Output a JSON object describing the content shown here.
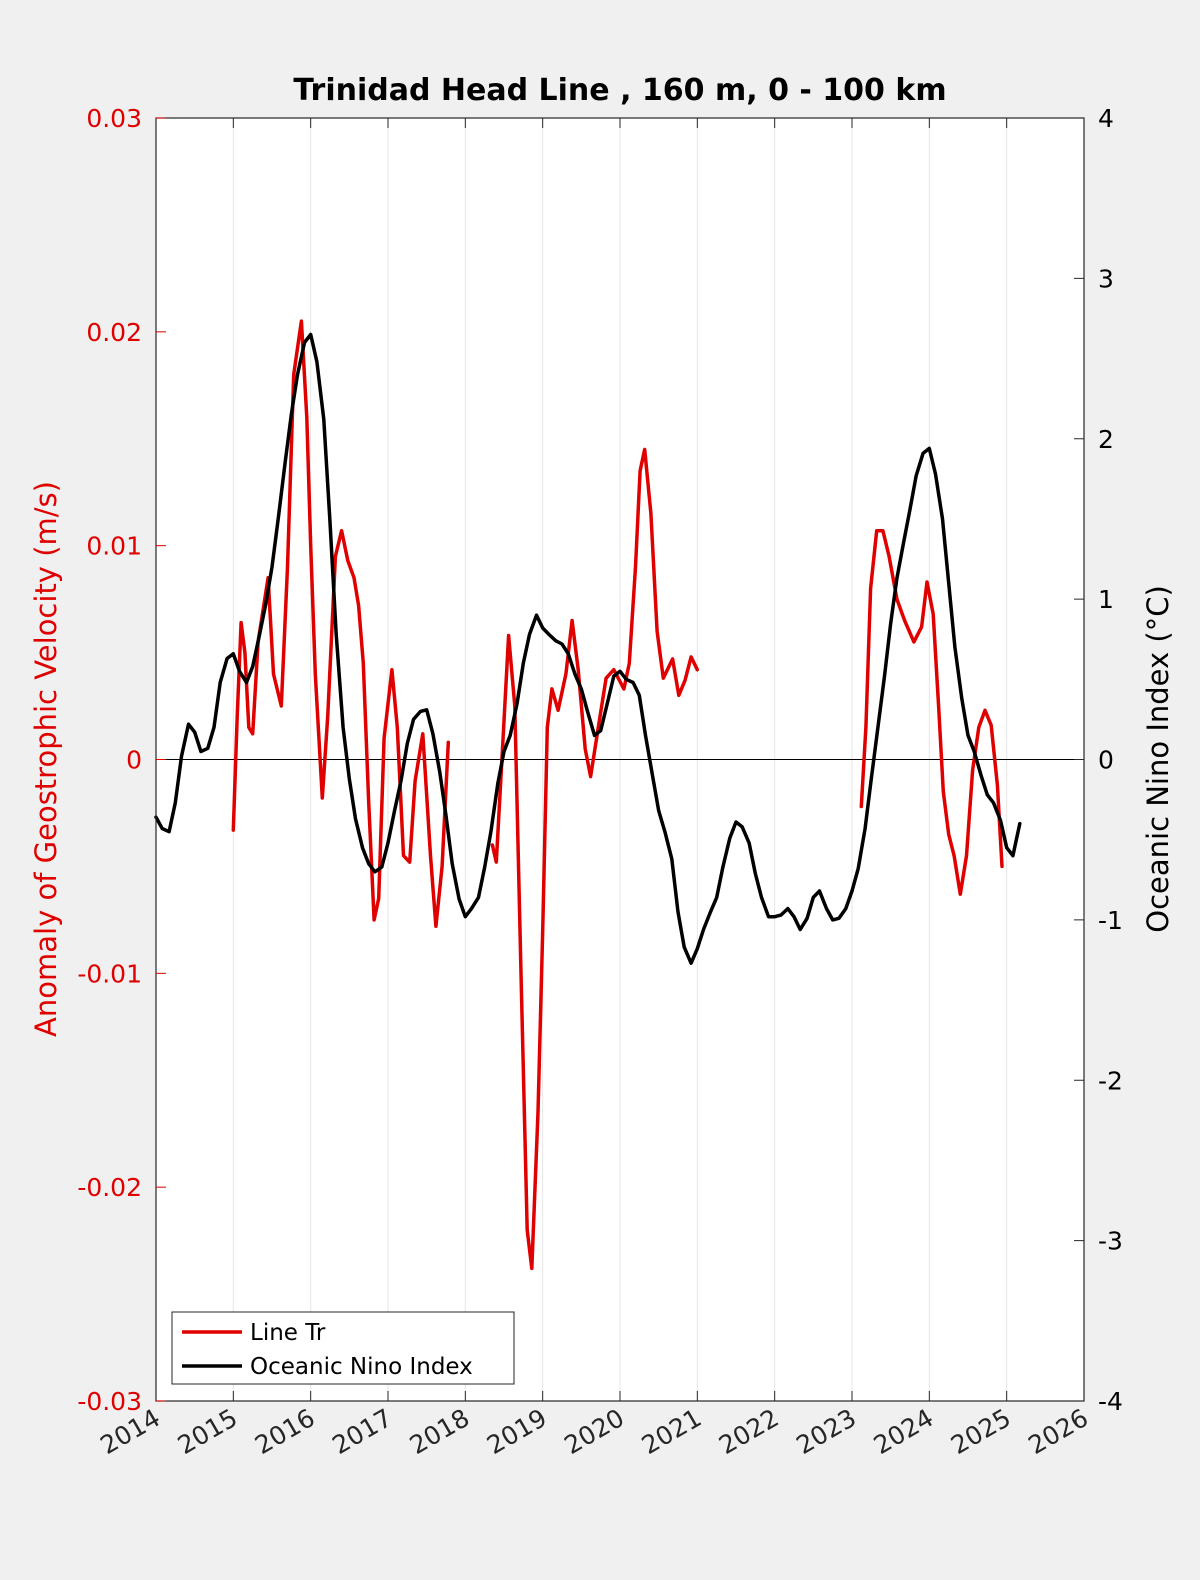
{
  "chart_data": {
    "type": "line",
    "title": "Trinidad Head Line , 160 m, 0 - 100 km",
    "ylabel_left": "Anomaly of Geostrophic Velocity (m/s)",
    "ylabel_right": "Oceanic Nino Index (°C)",
    "xlabel": "",
    "xlim": [
      2014,
      2026
    ],
    "ylim_left": [
      -0.03,
      0.03
    ],
    "ylim_right": [
      -4,
      4
    ],
    "x_ticks": [
      "2014",
      "2015",
      "2016",
      "2017",
      "2018",
      "2019",
      "2020",
      "2021",
      "2022",
      "2023",
      "2024",
      "2025",
      "2026"
    ],
    "y_ticks_left": [
      "-0.03",
      "-0.02",
      "-0.01",
      "0",
      "0.01",
      "0.02",
      "0.03"
    ],
    "y_ticks_right": [
      "-4",
      "-3",
      "-2",
      "-1",
      "0",
      "1",
      "2",
      "3",
      "4"
    ],
    "grid": "x-only",
    "legend_position": "bottom-left",
    "series": [
      {
        "name": "Line Tr",
        "color": "#e00000",
        "axis": "left",
        "segments": [
          [
            [
              2015.0,
              -0.0033
            ],
            [
              2015.05,
              0.002
            ],
            [
              2015.1,
              0.0064
            ],
            [
              2015.15,
              0.005
            ],
            [
              2015.2,
              0.0015
            ],
            [
              2015.25,
              0.0012
            ],
            [
              2015.32,
              0.0055
            ],
            [
              2015.45,
              0.0085
            ],
            [
              2015.52,
              0.004
            ],
            [
              2015.62,
              0.0025
            ],
            [
              2015.7,
              0.009
            ],
            [
              2015.78,
              0.018
            ],
            [
              2015.88,
              0.0205
            ],
            [
              2015.95,
              0.016
            ],
            [
              2016.0,
              0.01
            ],
            [
              2016.06,
              0.004
            ],
            [
              2016.15,
              -0.0018
            ],
            [
              2016.22,
              0.002
            ],
            [
              2016.32,
              0.0095
            ],
            [
              2016.4,
              0.0107
            ],
            [
              2016.48,
              0.0093
            ],
            [
              2016.56,
              0.0085
            ],
            [
              2016.62,
              0.0072
            ],
            [
              2016.68,
              0.0045
            ],
            [
              2016.75,
              -0.002
            ],
            [
              2016.82,
              -0.0075
            ],
            [
              2016.88,
              -0.0065
            ],
            [
              2016.95,
              0.001
            ],
            [
              2017.05,
              0.0042
            ],
            [
              2017.12,
              0.0015
            ],
            [
              2017.2,
              -0.0045
            ],
            [
              2017.28,
              -0.0048
            ],
            [
              2017.35,
              -0.001
            ],
            [
              2017.45,
              0.0012
            ],
            [
              2017.55,
              -0.0045
            ],
            [
              2017.62,
              -0.0078
            ],
            [
              2017.7,
              -0.005
            ],
            [
              2017.78,
              0.0008
            ]
          ],
          [
            [
              2018.35,
              -0.004
            ],
            [
              2018.4,
              -0.0048
            ],
            [
              2018.48,
              0.0005
            ],
            [
              2018.56,
              0.0058
            ],
            [
              2018.64,
              0.0025
            ],
            [
              2018.72,
              -0.01
            ],
            [
              2018.8,
              -0.022
            ],
            [
              2018.86,
              -0.0238
            ],
            [
              2018.94,
              -0.0165
            ],
            [
              2019.0,
              -0.008
            ],
            [
              2019.06,
              0.0015
            ],
            [
              2019.12,
              0.0033
            ],
            [
              2019.2,
              0.0023
            ],
            [
              2019.3,
              0.004
            ],
            [
              2019.38,
              0.0065
            ],
            [
              2019.46,
              0.0042
            ],
            [
              2019.55,
              0.0005
            ],
            [
              2019.62,
              -0.0008
            ],
            [
              2019.72,
              0.0015
            ],
            [
              2019.82,
              0.0038
            ],
            [
              2019.92,
              0.0042
            ],
            [
              2020.05,
              0.0033
            ],
            [
              2020.12,
              0.0045
            ],
            [
              2020.2,
              0.009
            ],
            [
              2020.26,
              0.0135
            ],
            [
              2020.32,
              0.0145
            ],
            [
              2020.4,
              0.0115
            ],
            [
              2020.48,
              0.006
            ],
            [
              2020.56,
              0.0038
            ],
            [
              2020.68,
              0.0047
            ],
            [
              2020.76,
              0.003
            ],
            [
              2020.84,
              0.0037
            ],
            [
              2020.92,
              0.0048
            ],
            [
              2021.0,
              0.0042
            ]
          ],
          [
            [
              2023.12,
              -0.0022
            ],
            [
              2023.18,
              0.0015
            ],
            [
              2023.24,
              0.008
            ],
            [
              2023.32,
              0.0107
            ],
            [
              2023.4,
              0.0107
            ],
            [
              2023.48,
              0.0095
            ],
            [
              2023.58,
              0.0075
            ],
            [
              2023.68,
              0.0065
            ],
            [
              2023.8,
              0.0055
            ],
            [
              2023.9,
              0.0062
            ],
            [
              2023.97,
              0.0083
            ],
            [
              2024.05,
              0.0068
            ],
            [
              2024.12,
              0.0025
            ],
            [
              2024.18,
              -0.0015
            ],
            [
              2024.25,
              -0.0035
            ],
            [
              2024.32,
              -0.0045
            ],
            [
              2024.4,
              -0.0063
            ],
            [
              2024.48,
              -0.0045
            ],
            [
              2024.56,
              -0.0005
            ],
            [
              2024.64,
              0.0015
            ],
            [
              2024.72,
              0.0023
            ],
            [
              2024.8,
              0.0016
            ],
            [
              2024.88,
              -0.0012
            ],
            [
              2024.94,
              -0.005
            ]
          ]
        ]
      },
      {
        "name": "Oceanic Nino Index",
        "color": "#000000",
        "axis": "right",
        "segments": [
          [
            [
              2014.0,
              -0.36
            ],
            [
              2014.08,
              -0.43
            ],
            [
              2014.17,
              -0.45
            ],
            [
              2014.25,
              -0.27
            ],
            [
              2014.33,
              0.02
            ],
            [
              2014.42,
              0.22
            ],
            [
              2014.5,
              0.17
            ],
            [
              2014.58,
              0.05
            ],
            [
              2014.67,
              0.07
            ],
            [
              2014.75,
              0.2
            ],
            [
              2014.83,
              0.48
            ],
            [
              2014.92,
              0.63
            ],
            [
              2015.0,
              0.66
            ],
            [
              2015.08,
              0.55
            ],
            [
              2015.17,
              0.48
            ],
            [
              2015.25,
              0.58
            ],
            [
              2015.33,
              0.76
            ],
            [
              2015.42,
              0.97
            ],
            [
              2015.5,
              1.2
            ],
            [
              2015.58,
              1.5
            ],
            [
              2015.67,
              1.85
            ],
            [
              2015.75,
              2.15
            ],
            [
              2015.83,
              2.4
            ],
            [
              2015.92,
              2.6
            ],
            [
              2016.0,
              2.65
            ],
            [
              2016.08,
              2.48
            ],
            [
              2016.17,
              2.12
            ],
            [
              2016.25,
              1.48
            ],
            [
              2016.33,
              0.78
            ],
            [
              2016.42,
              0.2
            ],
            [
              2016.5,
              -0.12
            ],
            [
              2016.58,
              -0.37
            ],
            [
              2016.67,
              -0.55
            ],
            [
              2016.75,
              -0.65
            ],
            [
              2016.83,
              -0.7
            ],
            [
              2016.92,
              -0.67
            ],
            [
              2017.0,
              -0.52
            ],
            [
              2017.08,
              -0.33
            ],
            [
              2017.17,
              -0.13
            ],
            [
              2017.25,
              0.1
            ],
            [
              2017.33,
              0.25
            ],
            [
              2017.42,
              0.3
            ],
            [
              2017.5,
              0.31
            ],
            [
              2017.58,
              0.16
            ],
            [
              2017.67,
              -0.08
            ],
            [
              2017.75,
              -0.35
            ],
            [
              2017.83,
              -0.65
            ],
            [
              2017.92,
              -0.87
            ],
            [
              2018.0,
              -0.98
            ],
            [
              2018.08,
              -0.93
            ],
            [
              2018.17,
              -0.86
            ],
            [
              2018.25,
              -0.67
            ],
            [
              2018.33,
              -0.45
            ],
            [
              2018.42,
              -0.15
            ],
            [
              2018.5,
              0.05
            ],
            [
              2018.58,
              0.15
            ],
            [
              2018.67,
              0.35
            ],
            [
              2018.75,
              0.6
            ],
            [
              2018.83,
              0.78
            ],
            [
              2018.92,
              0.9
            ],
            [
              2019.0,
              0.82
            ],
            [
              2019.08,
              0.78
            ],
            [
              2019.17,
              0.74
            ],
            [
              2019.25,
              0.72
            ],
            [
              2019.33,
              0.66
            ],
            [
              2019.42,
              0.53
            ],
            [
              2019.5,
              0.44
            ],
            [
              2019.58,
              0.3
            ],
            [
              2019.67,
              0.15
            ],
            [
              2019.75,
              0.18
            ],
            [
              2019.83,
              0.34
            ],
            [
              2019.92,
              0.52
            ],
            [
              2020.0,
              0.55
            ],
            [
              2020.08,
              0.5
            ],
            [
              2020.17,
              0.48
            ],
            [
              2020.25,
              0.4
            ],
            [
              2020.33,
              0.15
            ],
            [
              2020.42,
              -0.1
            ],
            [
              2020.5,
              -0.32
            ],
            [
              2020.58,
              -0.45
            ],
            [
              2020.67,
              -0.62
            ],
            [
              2020.75,
              -0.95
            ],
            [
              2020.83,
              -1.17
            ],
            [
              2020.92,
              -1.27
            ],
            [
              2021.0,
              -1.18
            ],
            [
              2021.08,
              -1.06
            ],
            [
              2021.17,
              -0.95
            ],
            [
              2021.25,
              -0.86
            ],
            [
              2021.33,
              -0.67
            ],
            [
              2021.42,
              -0.49
            ],
            [
              2021.5,
              -0.39
            ],
            [
              2021.58,
              -0.42
            ],
            [
              2021.67,
              -0.52
            ],
            [
              2021.75,
              -0.71
            ],
            [
              2021.83,
              -0.86
            ],
            [
              2021.92,
              -0.98
            ],
            [
              2022.0,
              -0.98
            ],
            [
              2022.08,
              -0.97
            ],
            [
              2022.17,
              -0.93
            ],
            [
              2022.25,
              -0.98
            ],
            [
              2022.33,
              -1.06
            ],
            [
              2022.42,
              -0.99
            ],
            [
              2022.5,
              -0.86
            ],
            [
              2022.58,
              -0.82
            ],
            [
              2022.67,
              -0.93
            ],
            [
              2022.75,
              -1.0
            ],
            [
              2022.83,
              -0.99
            ],
            [
              2022.92,
              -0.93
            ],
            [
              2023.0,
              -0.82
            ],
            [
              2023.08,
              -0.68
            ],
            [
              2023.17,
              -0.43
            ],
            [
              2023.25,
              -0.12
            ],
            [
              2023.33,
              0.18
            ],
            [
              2023.42,
              0.52
            ],
            [
              2023.5,
              0.85
            ],
            [
              2023.58,
              1.13
            ],
            [
              2023.67,
              1.36
            ],
            [
              2023.75,
              1.56
            ],
            [
              2023.83,
              1.77
            ],
            [
              2023.92,
              1.91
            ],
            [
              2024.0,
              1.94
            ],
            [
              2024.08,
              1.78
            ],
            [
              2024.17,
              1.5
            ],
            [
              2024.25,
              1.1
            ],
            [
              2024.33,
              0.7
            ],
            [
              2024.42,
              0.38
            ],
            [
              2024.5,
              0.15
            ],
            [
              2024.58,
              0.05
            ],
            [
              2024.67,
              -0.1
            ],
            [
              2024.75,
              -0.22
            ],
            [
              2024.83,
              -0.27
            ],
            [
              2024.92,
              -0.38
            ],
            [
              2025.0,
              -0.55
            ],
            [
              2025.08,
              -0.6
            ],
            [
              2025.17,
              -0.4
            ]
          ]
        ]
      }
    ]
  }
}
